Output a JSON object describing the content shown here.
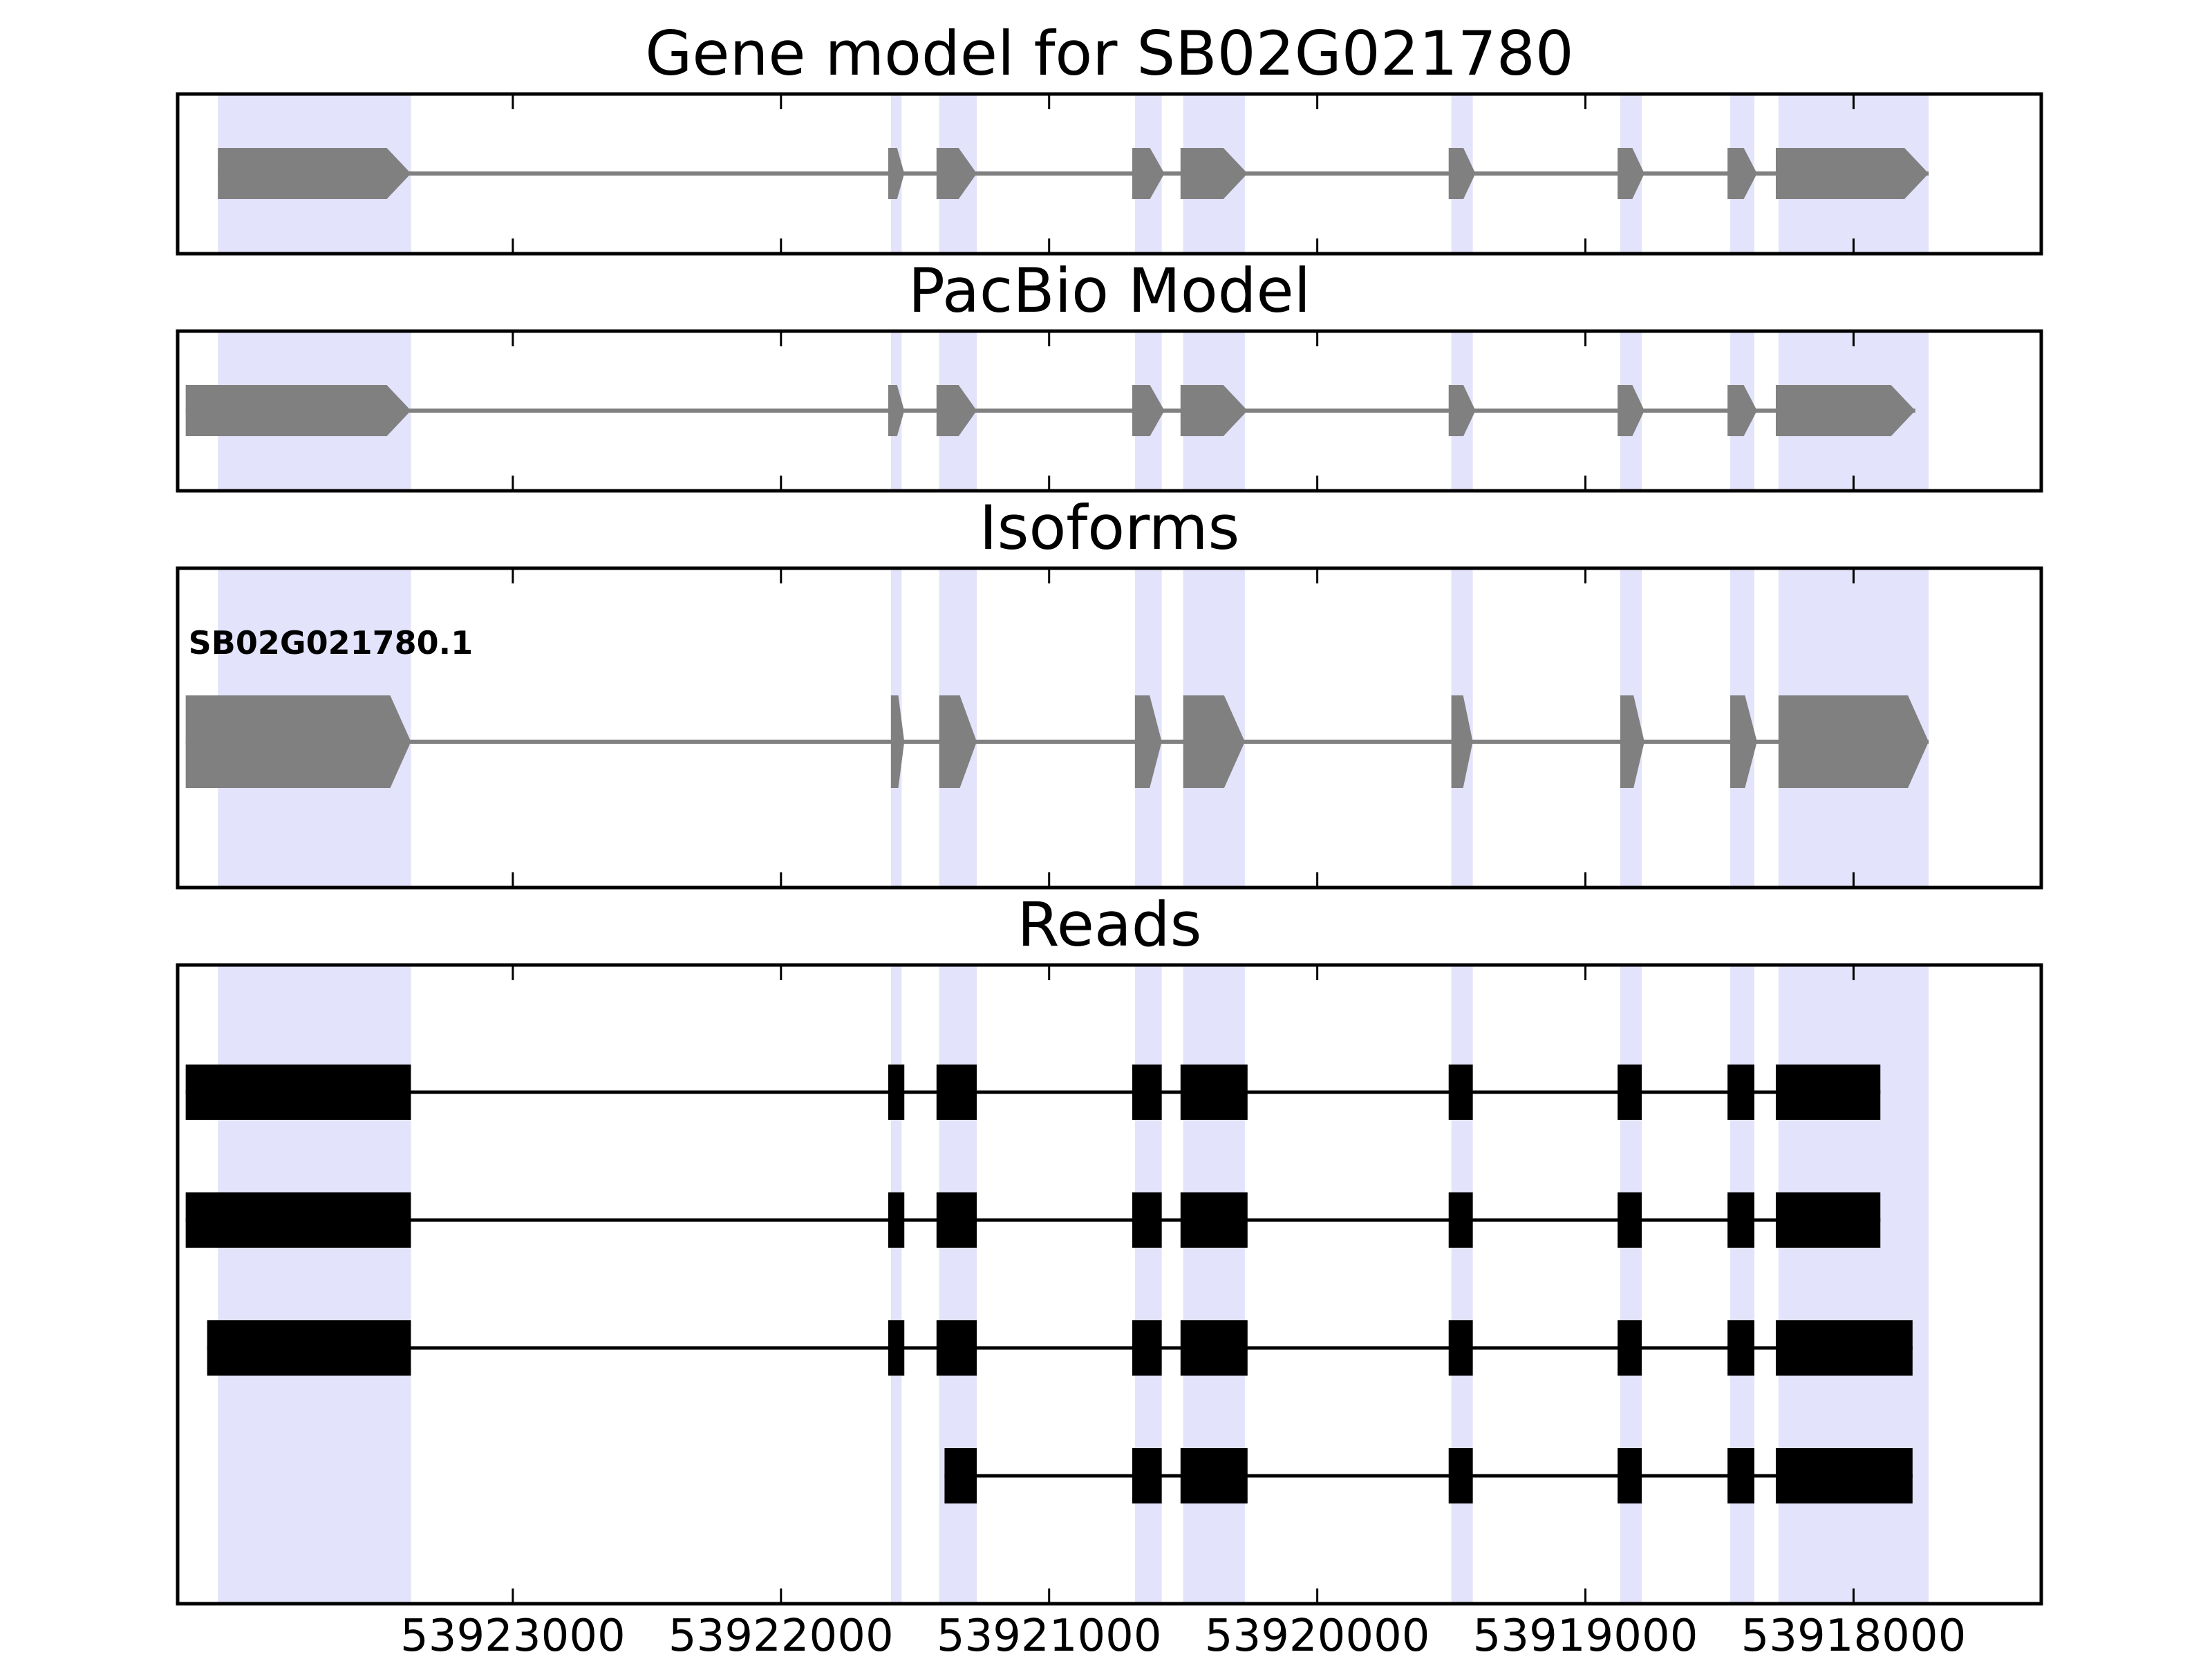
{
  "colors": {
    "highlight": "#e3e3fb",
    "model_feature": "#808080",
    "read_feature": "#000000",
    "axes": "#000000"
  },
  "chart_data": {
    "type": "gene-structure",
    "xlim": [
      53924250,
      53917300
    ],
    "x_axis_reversed": true,
    "xticks": [
      53923000,
      53922000,
      53921000,
      53920000,
      53919000,
      53918000
    ],
    "xtick_labels": [
      "53923000",
      "53922000",
      "53921000",
      "53920000",
      "53919000",
      "53918000"
    ],
    "highlight_regions": [
      [
        53924100,
        53923380
      ],
      [
        53921590,
        53921550
      ],
      [
        53921410,
        53921270
      ],
      [
        53920680,
        53920580
      ],
      [
        53920500,
        53920270
      ],
      [
        53919500,
        53919420
      ],
      [
        53918870,
        53918790
      ],
      [
        53918460,
        53918370
      ],
      [
        53918280,
        53917720
      ]
    ],
    "panels": [
      {
        "title": "Gene model for SB02G021780",
        "style": "arrows",
        "tracks": [
          {
            "label": "",
            "exons": [
              [
                53924100,
                53923380
              ],
              [
                53921600,
                53921540
              ],
              [
                53921420,
                53921270
              ],
              [
                53920690,
                53920570
              ],
              [
                53920510,
                53920260
              ],
              [
                53919510,
                53919410
              ],
              [
                53918880,
                53918780
              ],
              [
                53918470,
                53918360
              ],
              [
                53918290,
                53917720
              ]
            ]
          }
        ]
      },
      {
        "title": "PacBio Model",
        "style": "arrows",
        "tracks": [
          {
            "label": "",
            "exons": [
              [
                53924220,
                53923380
              ],
              [
                53921600,
                53921540
              ],
              [
                53921420,
                53921270
              ],
              [
                53920690,
                53920570
              ],
              [
                53920510,
                53920260
              ],
              [
                53919510,
                53919410
              ],
              [
                53918880,
                53918780
              ],
              [
                53918470,
                53918360
              ],
              [
                53918290,
                53917770
              ]
            ]
          }
        ]
      },
      {
        "title": "Isoforms",
        "style": "arrows",
        "tracks": [
          {
            "label": "SB02G021780.1",
            "exons": [
              [
                53924220,
                53923380
              ],
              [
                53921590,
                53921540
              ],
              [
                53921410,
                53921270
              ],
              [
                53920680,
                53920580
              ],
              [
                53920500,
                53920270
              ],
              [
                53919500,
                53919420
              ],
              [
                53918870,
                53918780
              ],
              [
                53918460,
                53918360
              ],
              [
                53918280,
                53917720
              ]
            ]
          }
        ]
      },
      {
        "title": "Reads",
        "style": "boxes",
        "tracks": [
          {
            "label": "",
            "exons": [
              [
                53924220,
                53923380
              ],
              [
                53921600,
                53921540
              ],
              [
                53921420,
                53921270
              ],
              [
                53920690,
                53920580
              ],
              [
                53920510,
                53920260
              ],
              [
                53919510,
                53919420
              ],
              [
                53918880,
                53918790
              ],
              [
                53918470,
                53918370
              ],
              [
                53918290,
                53917900
              ]
            ]
          },
          {
            "label": "",
            "exons": [
              [
                53924220,
                53923380
              ],
              [
                53921600,
                53921540
              ],
              [
                53921420,
                53921270
              ],
              [
                53920690,
                53920580
              ],
              [
                53920510,
                53920260
              ],
              [
                53919510,
                53919420
              ],
              [
                53918880,
                53918790
              ],
              [
                53918470,
                53918370
              ],
              [
                53918290,
                53917900
              ]
            ]
          },
          {
            "label": "",
            "exons": [
              [
                53924140,
                53923380
              ],
              [
                53921600,
                53921540
              ],
              [
                53921420,
                53921270
              ],
              [
                53920690,
                53920580
              ],
              [
                53920510,
                53920260
              ],
              [
                53919510,
                53919420
              ],
              [
                53918880,
                53918790
              ],
              [
                53918470,
                53918370
              ],
              [
                53918290,
                53917780
              ]
            ]
          },
          {
            "label": "",
            "exons": [
              [
                53921390,
                53921270
              ],
              [
                53920690,
                53920580
              ],
              [
                53920510,
                53920260
              ],
              [
                53919510,
                53919420
              ],
              [
                53918880,
                53918790
              ],
              [
                53918470,
                53918370
              ],
              [
                53918290,
                53917780
              ]
            ]
          }
        ]
      }
    ]
  }
}
